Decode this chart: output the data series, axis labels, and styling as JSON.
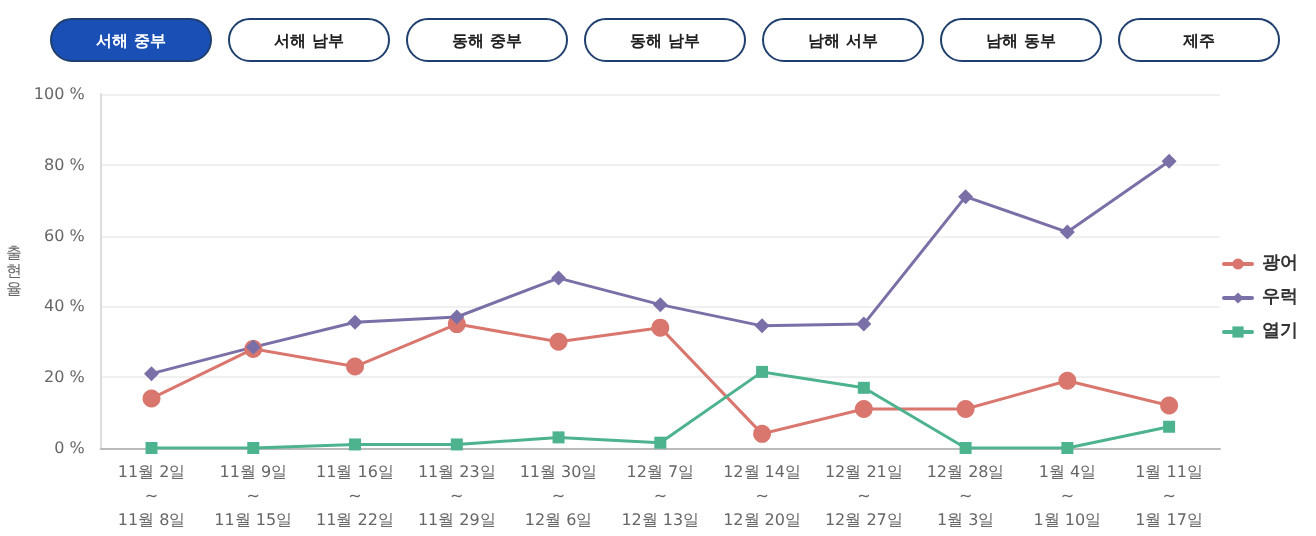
{
  "chart_data": {
    "type": "line",
    "ylabel": "출현율",
    "annotations": [
      "서해 중부",
      "서해 남부",
      "동해 중부",
      "동해 남부",
      "남해 서부",
      "남해 동부",
      "제주"
    ],
    "categories": [
      "11월 2일\n~\n11월 8일",
      "11월 9일\n~\n11월 15일",
      "11월 16일\n~\n11월 22일",
      "11월 23일\n~\n11월 29일",
      "11월 30일\n~\n12월 6일",
      "12월 7일\n~\n12월 13일",
      "12월 14일\n~\n12월 20일",
      "12월 21일\n~\n12월 27일",
      "12월 28일\n~\n1월 3일",
      "1월 4일\n~\n1월 10일",
      "1월 11일\n~\n1월 17일"
    ],
    "series": [
      {
        "name": "광어",
        "color": "#d9776f",
        "marker": "circle",
        "values": [
          14,
          28,
          23,
          35,
          30,
          34,
          4,
          11,
          11,
          19,
          12
        ]
      },
      {
        "name": "우럭",
        "color": "#7b6fa8",
        "marker": "diamond",
        "values": [
          21,
          28.5,
          35.5,
          37,
          48,
          40.5,
          34.5,
          35,
          71,
          61,
          81
        ]
      },
      {
        "name": "열기",
        "color": "#4db38f",
        "marker": "square",
        "values": [
          0,
          0,
          1,
          1,
          3,
          1.5,
          21.5,
          17,
          0,
          0,
          6
        ]
      }
    ],
    "ylim": [
      0,
      100
    ],
    "yticks": [
      {
        "value": 0,
        "label": "0 %"
      },
      {
        "value": 20,
        "label": "20 %"
      },
      {
        "value": 40,
        "label": "40 %"
      },
      {
        "value": 60,
        "label": "60 %"
      },
      {
        "value": 80,
        "label": "80 %"
      },
      {
        "value": 100,
        "label": "100 %"
      }
    ],
    "grid": "y",
    "legend": "right",
    "line_style": "solid"
  }
}
